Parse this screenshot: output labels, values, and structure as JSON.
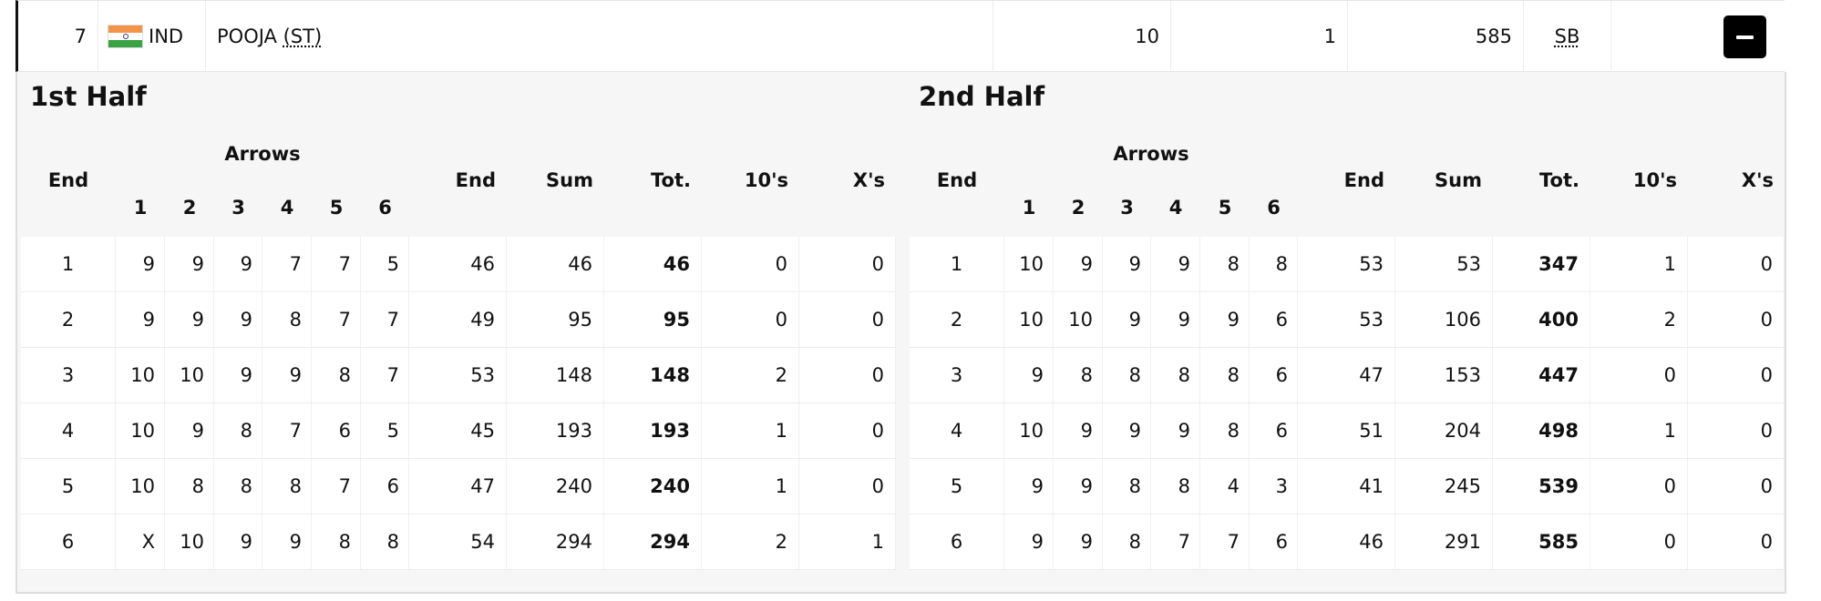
{
  "athlete": {
    "rank": "7",
    "country": "IND",
    "name": "POOJA",
    "name_suffix": "(ST)",
    "tens": "10",
    "xs": "1",
    "score": "585",
    "record": "SB"
  },
  "columns": {
    "end": "End",
    "arrows": "Arrows",
    "arrow_numbers": [
      "1",
      "2",
      "3",
      "4",
      "5",
      "6"
    ],
    "end_total": "End",
    "sum": "Sum",
    "total": "Tot.",
    "tens": "10's",
    "xs": "X's"
  },
  "halves": [
    {
      "title": "1st Half",
      "rows": [
        {
          "end": "1",
          "arrows": [
            "9",
            "9",
            "9",
            "7",
            "7",
            "5"
          ],
          "end_score": "46",
          "sum": "46",
          "tot": "46",
          "tens": "0",
          "xs": "0"
        },
        {
          "end": "2",
          "arrows": [
            "9",
            "9",
            "9",
            "8",
            "7",
            "7"
          ],
          "end_score": "49",
          "sum": "95",
          "tot": "95",
          "tens": "0",
          "xs": "0"
        },
        {
          "end": "3",
          "arrows": [
            "10",
            "10",
            "9",
            "9",
            "8",
            "7"
          ],
          "end_score": "53",
          "sum": "148",
          "tot": "148",
          "tens": "2",
          "xs": "0"
        },
        {
          "end": "4",
          "arrows": [
            "10",
            "9",
            "8",
            "7",
            "6",
            "5"
          ],
          "end_score": "45",
          "sum": "193",
          "tot": "193",
          "tens": "1",
          "xs": "0"
        },
        {
          "end": "5",
          "arrows": [
            "10",
            "8",
            "8",
            "8",
            "7",
            "6"
          ],
          "end_score": "47",
          "sum": "240",
          "tot": "240",
          "tens": "1",
          "xs": "0"
        },
        {
          "end": "6",
          "arrows": [
            "X",
            "10",
            "9",
            "9",
            "8",
            "8"
          ],
          "end_score": "54",
          "sum": "294",
          "tot": "294",
          "tens": "2",
          "xs": "1"
        }
      ]
    },
    {
      "title": "2nd Half",
      "rows": [
        {
          "end": "1",
          "arrows": [
            "10",
            "9",
            "9",
            "9",
            "8",
            "8"
          ],
          "end_score": "53",
          "sum": "53",
          "tot": "347",
          "tens": "1",
          "xs": "0"
        },
        {
          "end": "2",
          "arrows": [
            "10",
            "10",
            "9",
            "9",
            "9",
            "6"
          ],
          "end_score": "53",
          "sum": "106",
          "tot": "400",
          "tens": "2",
          "xs": "0"
        },
        {
          "end": "3",
          "arrows": [
            "9",
            "8",
            "8",
            "8",
            "8",
            "6"
          ],
          "end_score": "47",
          "sum": "153",
          "tot": "447",
          "tens": "0",
          "xs": "0"
        },
        {
          "end": "4",
          "arrows": [
            "10",
            "9",
            "9",
            "9",
            "8",
            "6"
          ],
          "end_score": "51",
          "sum": "204",
          "tot": "498",
          "tens": "1",
          "xs": "0"
        },
        {
          "end": "5",
          "arrows": [
            "9",
            "9",
            "8",
            "8",
            "4",
            "3"
          ],
          "end_score": "41",
          "sum": "245",
          "tot": "539",
          "tens": "0",
          "xs": "0"
        },
        {
          "end": "6",
          "arrows": [
            "9",
            "9",
            "8",
            "7",
            "7",
            "6"
          ],
          "end_score": "46",
          "sum": "291",
          "tot": "585",
          "tens": "0",
          "xs": "0"
        }
      ]
    }
  ]
}
